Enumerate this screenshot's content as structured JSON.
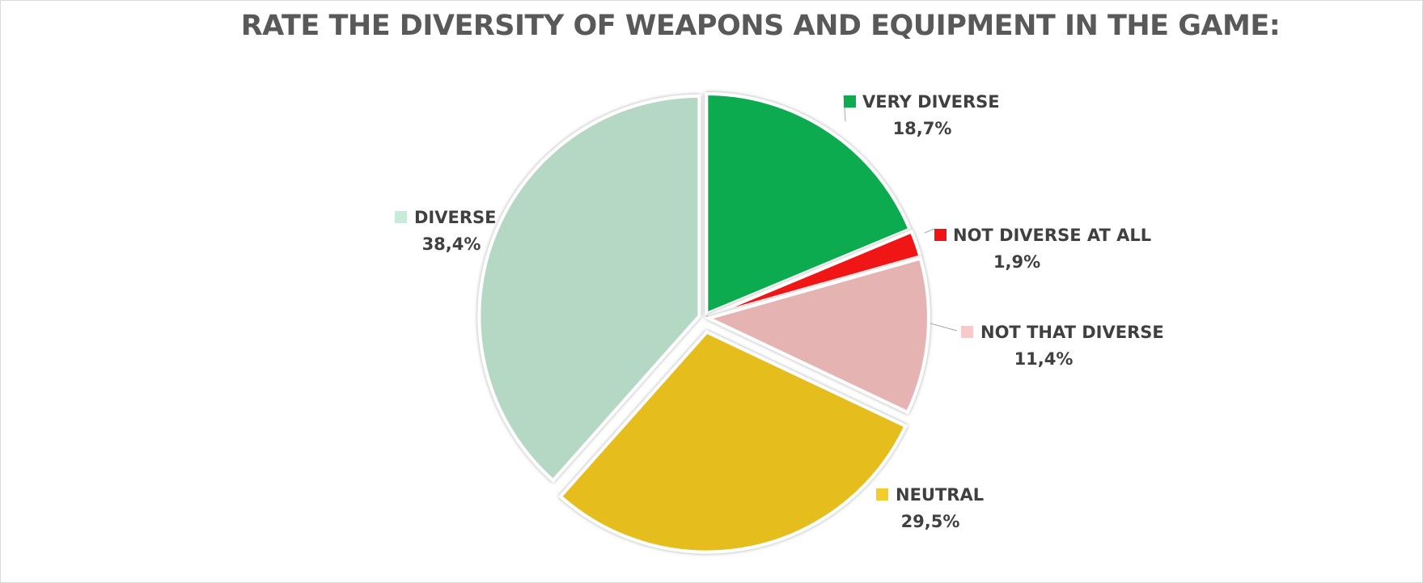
{
  "chart_data": {
    "type": "pie",
    "title": "RATE THE DIVERSITY OF WEAPONS AND EQUIPMENT IN THE GAME:",
    "slices": [
      {
        "label": "VERY DIVERSE",
        "value": 18.7,
        "value_label": "18,7%",
        "color": "#0fab4f"
      },
      {
        "label": "NOT DIVERSE AT ALL",
        "value": 1.9,
        "value_label": "1,9%",
        "color": "#f01414"
      },
      {
        "label": "NOT THAT DIVERSE",
        "value": 11.4,
        "value_label": "11,4%",
        "color": "#e6b3b3"
      },
      {
        "label": "NEUTRAL",
        "value": 29.5,
        "value_label": "29,5%",
        "color": "#e5bd1e"
      },
      {
        "label": "DIVERSE",
        "value": 38.4,
        "value_label": "38,4%",
        "color": "#b4d8c4"
      }
    ],
    "legend_swatch_colors": [
      "#0fab4f",
      "#f01414",
      "#f7c9c9",
      "#f2cd2c",
      "#c6ebd7"
    ],
    "start_angle": "12 o'clock",
    "direction": "clockwise",
    "exploded": true,
    "legend": "data labels beside slices"
  }
}
